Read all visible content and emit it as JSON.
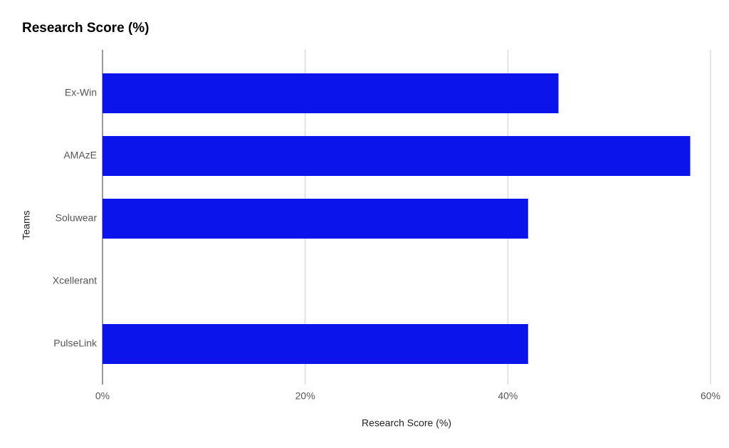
{
  "chart_data": {
    "type": "bar",
    "orientation": "horizontal",
    "title": "Research Score (%)",
    "x_label": "Research Score (%)",
    "y_label": "Teams",
    "categories": [
      "Ex-Win",
      "AMAzE",
      "Soluwear",
      "Xcellerant",
      "PulseLink"
    ],
    "values": [
      45,
      58,
      42,
      0,
      42
    ],
    "color": "#0b14ea",
    "xlim": [
      0,
      60
    ],
    "xticks": [
      {
        "value": 0,
        "label": "0%"
      },
      {
        "value": 20,
        "label": "20%"
      },
      {
        "value": 40,
        "label": "40%"
      },
      {
        "value": 60,
        "label": "60%"
      }
    ],
    "grid": true
  }
}
